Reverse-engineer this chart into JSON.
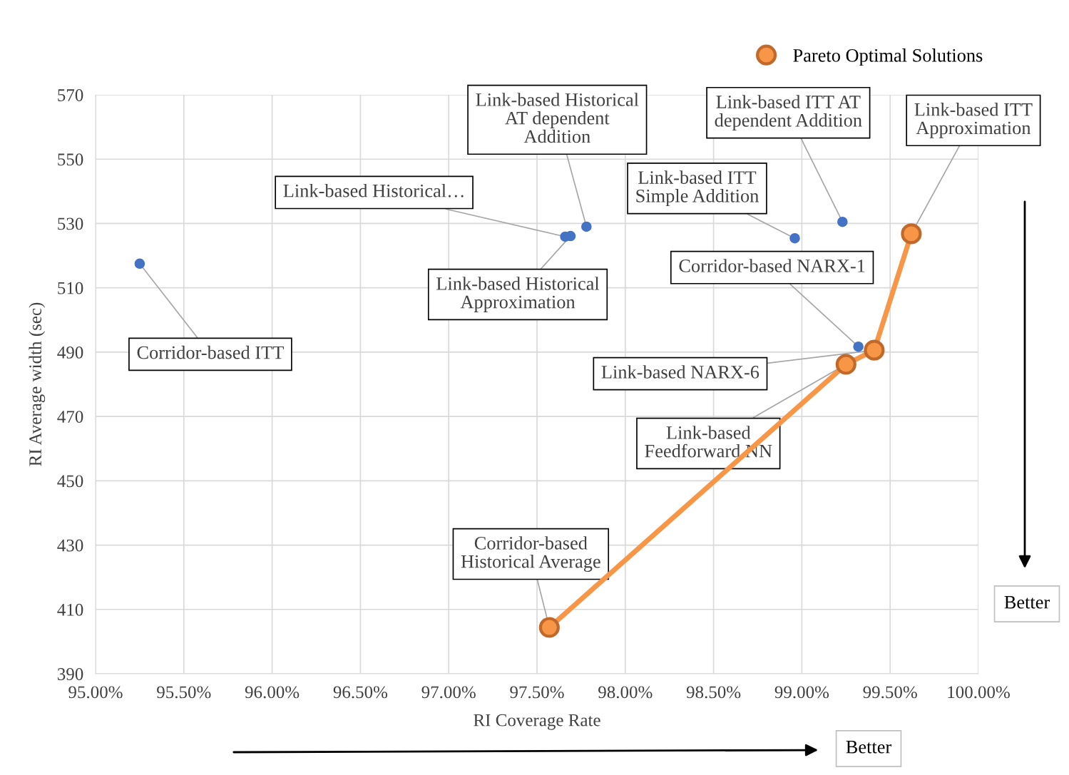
{
  "chart_data": {
    "type": "scatter",
    "xlabel": "RI Coverage Rate",
    "ylabel": "RI Average width (sec)",
    "xlim": [
      95,
      100
    ],
    "ylim": [
      390,
      570
    ],
    "xticks": [
      {
        "value": 95,
        "label": "95.00%"
      },
      {
        "value": 95.5,
        "label": "95.50%"
      },
      {
        "value": 96,
        "label": "96.00%"
      },
      {
        "value": 96.5,
        "label": "96.50%"
      },
      {
        "value": 97,
        "label": "97.00%"
      },
      {
        "value": 97.5,
        "label": "97.50%"
      },
      {
        "value": 98,
        "label": "98.00%"
      },
      {
        "value": 98.5,
        "label": "98.50%"
      },
      {
        "value": 99,
        "label": "99.00%"
      },
      {
        "value": 99.5,
        "label": "99.50%"
      },
      {
        "value": 100,
        "label": "100.00%"
      }
    ],
    "yticks": [
      390,
      410,
      430,
      450,
      470,
      490,
      510,
      530,
      550,
      570
    ],
    "grid": true,
    "legend": "top right",
    "marker": "circle",
    "series": [
      {
        "color": "#4472c4",
        "x": [
          95.25,
          97.66,
          97.69,
          97.78,
          98.96,
          99.23,
          99.32
        ],
        "values": [
          517.5,
          525.9,
          526.1,
          529.0,
          525.4,
          530.5,
          491.7
        ]
      },
      {
        "type": "line",
        "name": "Pareto Optimal Solutions",
        "color": "#f79646",
        "x": [
          97.57,
          99.25,
          99.41,
          99.62
        ],
        "values": [
          404.4,
          486.2,
          490.6,
          526.8
        ]
      }
    ],
    "annotations": [
      {
        "text": "Corridor-based ITT",
        "x": 95.25,
        "y": 517.5
      },
      {
        "text": "Link-based Historical…",
        "x": 97.66,
        "y": 525.9
      },
      {
        "text": "Link-based Historical\nApproximation",
        "x": 97.69,
        "y": 526.1
      },
      {
        "text": "Link-based Historical\nAT dependent\nAddition",
        "x": 97.78,
        "y": 529.0
      },
      {
        "text": "Link-based ITT\nSimple Addition",
        "x": 98.96,
        "y": 525.4
      },
      {
        "text": "Link-based ITT AT\ndependent Addition",
        "x": 99.23,
        "y": 530.5
      },
      {
        "text": "Link-based ITT\nApproximation",
        "x": 99.62,
        "y": 526.8
      },
      {
        "text": "Corridor-based NARX-1",
        "x": 99.32,
        "y": 491.7
      },
      {
        "text": "Link-based NARX-6",
        "x": 99.41,
        "y": 490.6
      },
      {
        "text": "Link-based\nFeedforward NN",
        "x": 99.25,
        "y": 486.2
      },
      {
        "text": "Corridor-based\nHistorical Average",
        "x": 97.57,
        "y": 404.4
      },
      "Better",
      "Better"
    ]
  }
}
